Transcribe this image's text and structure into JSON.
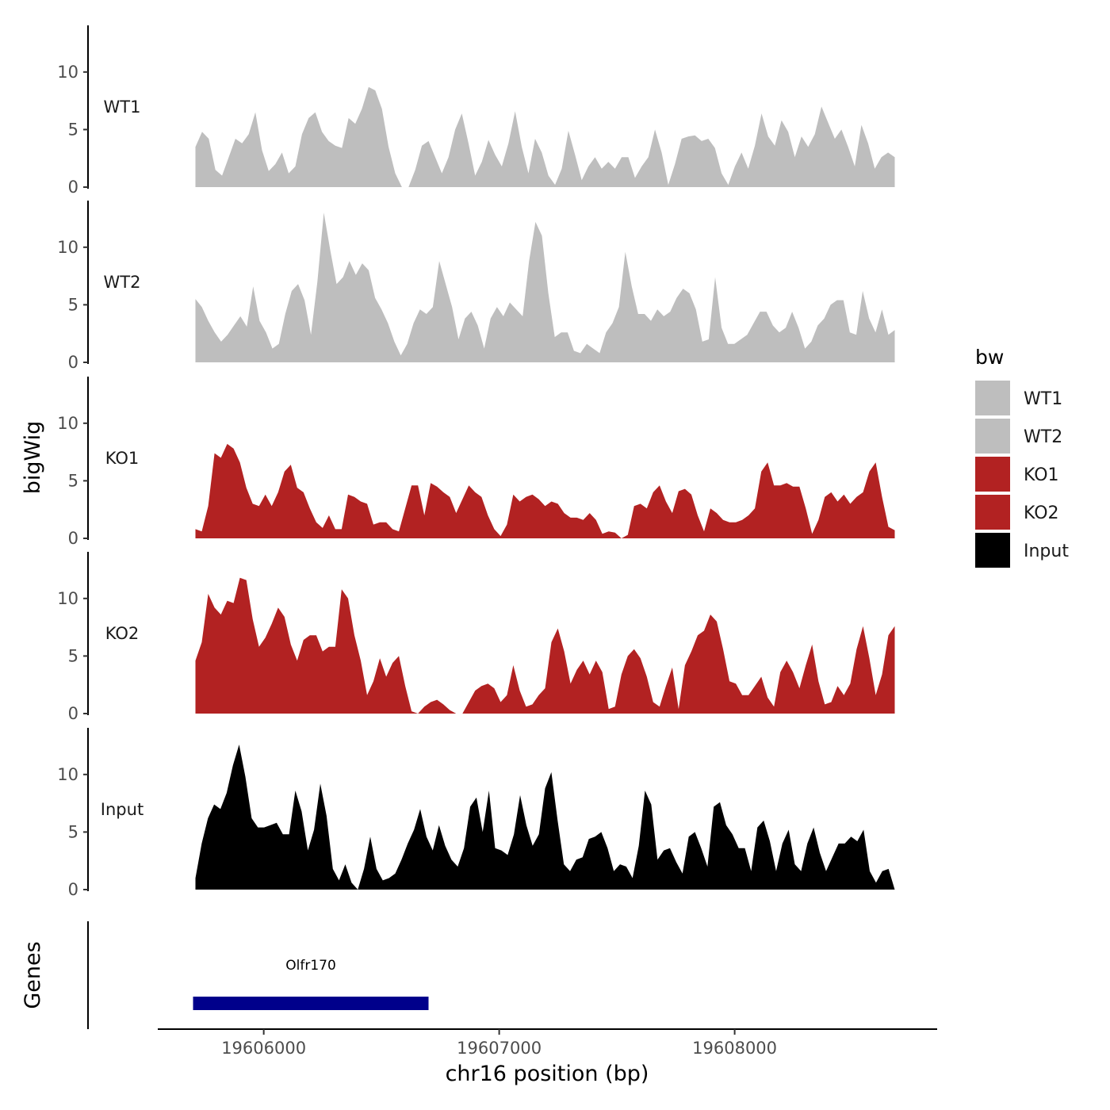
{
  "chart_data": {
    "type": "area",
    "xlabel": "chr16 position (bp)",
    "ylabel": "bigWig",
    "genes_label": "Genes",
    "xlim": [
      19605550,
      19608860
    ],
    "x_ticks": [
      19606000,
      19607000,
      19608000
    ],
    "x_tick_labels": [
      "19606000",
      "19607000",
      "19608000"
    ],
    "ylim": [
      0,
      13.5
    ],
    "y_ticks": [
      0,
      5,
      10
    ],
    "y_tick_labels": [
      "0",
      "5",
      "10"
    ],
    "region": [
      19605710,
      19608680
    ],
    "legend": {
      "title": "bw",
      "entries": [
        {
          "label": "WT1",
          "color": "#bebebe"
        },
        {
          "label": "WT2",
          "color": "#bebebe"
        },
        {
          "label": "KO1",
          "color": "#b22222"
        },
        {
          "label": "KO2",
          "color": "#b22222"
        },
        {
          "label": "Input",
          "color": "#000000"
        }
      ]
    },
    "series": [
      {
        "name": "WT1",
        "color": "#bebebe",
        "values": [
          3.5,
          4.8,
          4.2,
          1.5,
          1.0,
          2.6,
          4.2,
          3.8,
          4.6,
          6.5,
          3.2,
          1.4,
          2.0,
          3.0,
          1.2,
          1.8,
          4.6,
          6.0,
          6.5,
          4.8,
          4.0,
          3.6,
          3.4,
          6.0,
          5.5,
          6.8,
          8.7,
          8.4,
          6.8,
          3.5,
          1.2,
          0.0,
          0.0,
          1.5,
          3.6,
          4.0,
          2.6,
          1.2,
          2.6,
          5.0,
          6.4,
          3.8,
          1.0,
          2.2,
          4.1,
          2.8,
          1.8,
          3.8,
          6.6,
          3.5,
          1.2,
          4.2,
          3.0,
          1.0,
          0.2,
          1.6,
          4.9,
          2.8,
          0.6,
          1.8,
          2.6,
          1.6,
          2.2,
          1.6,
          2.6,
          2.6,
          0.8,
          1.8,
          2.6,
          5.0,
          3.0,
          0.2,
          2.0,
          4.2,
          4.4,
          4.5,
          4.0,
          4.2,
          3.4,
          1.2,
          0.2,
          1.8,
          3.0,
          1.6,
          3.6,
          6.4,
          4.4,
          3.6,
          5.8,
          4.8,
          2.6,
          4.4,
          3.5,
          4.6,
          7.0,
          5.6,
          4.2,
          5.0,
          3.5,
          1.8,
          5.4,
          3.8,
          1.6,
          2.6,
          3.0,
          2.6
        ]
      },
      {
        "name": "WT2",
        "color": "#bebebe",
        "values": [
          5.5,
          4.8,
          3.6,
          2.6,
          1.8,
          2.4,
          3.2,
          4.0,
          3.1,
          6.6,
          3.6,
          2.6,
          1.2,
          1.6,
          4.2,
          6.2,
          6.8,
          5.4,
          2.4,
          7.0,
          13.0,
          9.8,
          6.8,
          7.4,
          8.8,
          7.6,
          8.6,
          8.0,
          5.6,
          4.6,
          3.4,
          1.8,
          0.6,
          1.6,
          3.4,
          4.6,
          4.2,
          4.8,
          8.8,
          6.8,
          4.8,
          2.0,
          3.8,
          4.4,
          3.2,
          1.2,
          3.8,
          4.8,
          4.0,
          5.2,
          4.6,
          4.0,
          8.8,
          12.2,
          11.0,
          6.0,
          2.2,
          2.6,
          2.6,
          1.0,
          0.8,
          1.6,
          1.2,
          0.8,
          2.6,
          3.4,
          4.8,
          9.6,
          6.6,
          4.2,
          4.2,
          3.6,
          4.6,
          4.0,
          4.4,
          5.6,
          6.4,
          6.0,
          4.6,
          1.8,
          2.0,
          7.4,
          3.0,
          1.6,
          1.6,
          2.0,
          2.4,
          3.4,
          4.4,
          4.4,
          3.2,
          2.6,
          3.0,
          4.4,
          3.0,
          1.2,
          1.8,
          3.2,
          3.8,
          5.0,
          5.4,
          5.4,
          2.6,
          2.4,
          6.2,
          3.8,
          2.6,
          4.6,
          2.4,
          2.8
        ]
      },
      {
        "name": "KO1",
        "color": "#b22222",
        "values": [
          0.8,
          0.6,
          2.8,
          7.4,
          7.0,
          8.2,
          7.8,
          6.6,
          4.4,
          3.0,
          2.8,
          3.8,
          2.8,
          4.0,
          5.8,
          6.4,
          4.4,
          4.0,
          2.6,
          1.4,
          0.9,
          2.0,
          0.8,
          0.8,
          3.8,
          3.6,
          3.2,
          3.0,
          1.2,
          1.4,
          1.4,
          0.8,
          0.6,
          2.6,
          4.6,
          4.6,
          2.0,
          4.8,
          4.5,
          4.0,
          3.6,
          2.2,
          3.4,
          4.6,
          4.0,
          3.6,
          2.0,
          0.8,
          0.2,
          1.2,
          3.8,
          3.2,
          3.6,
          3.8,
          3.4,
          2.8,
          3.2,
          3.0,
          2.2,
          1.8,
          1.8,
          1.6,
          2.2,
          1.6,
          0.4,
          0.6,
          0.5,
          0.0,
          0.3,
          2.8,
          3.0,
          2.6,
          4.0,
          4.6,
          3.2,
          2.2,
          4.1,
          4.3,
          3.8,
          2.0,
          0.6,
          2.6,
          2.2,
          1.6,
          1.4,
          1.4,
          1.6,
          2.0,
          2.6,
          5.8,
          6.6,
          4.6,
          4.6,
          4.8,
          4.5,
          4.5,
          2.6,
          0.4,
          1.6,
          3.6,
          4.0,
          3.2,
          3.8,
          3.0,
          3.6,
          4.0,
          5.8,
          6.6,
          3.6,
          1.0,
          0.7
        ]
      },
      {
        "name": "KO2",
        "color": "#b22222",
        "values": [
          4.6,
          6.2,
          10.4,
          9.2,
          8.6,
          9.8,
          9.6,
          11.8,
          11.6,
          8.2,
          5.8,
          6.6,
          7.8,
          9.2,
          8.4,
          6.0,
          4.6,
          6.4,
          6.8,
          6.8,
          5.4,
          5.8,
          5.8,
          10.8,
          10.0,
          6.8,
          4.6,
          1.6,
          2.8,
          4.8,
          3.2,
          4.4,
          5.0,
          2.4,
          0.2,
          0.0,
          0.6,
          1.0,
          1.2,
          0.8,
          0.3,
          0.0,
          0.0,
          1.0,
          2.0,
          2.4,
          2.6,
          2.2,
          1.0,
          1.6,
          4.2,
          2.0,
          0.6,
          0.8,
          1.6,
          2.2,
          6.2,
          7.4,
          5.4,
          2.6,
          3.8,
          4.6,
          3.4,
          4.6,
          3.6,
          0.4,
          0.6,
          3.4,
          5.0,
          5.6,
          4.8,
          3.2,
          1.0,
          0.6,
          2.4,
          4.0,
          0.4,
          4.2,
          5.4,
          6.8,
          7.2,
          8.6,
          8.0,
          5.6,
          2.8,
          2.6,
          1.6,
          1.6,
          2.4,
          3.2,
          1.4,
          0.6,
          3.6,
          4.6,
          3.6,
          2.2,
          4.2,
          6.0,
          2.8,
          0.8,
          1.0,
          2.4,
          1.6,
          2.6,
          5.6,
          7.6,
          4.8,
          1.6,
          3.4,
          6.8,
          7.6
        ]
      },
      {
        "name": "Input",
        "color": "#000000",
        "values": [
          1.0,
          4.0,
          6.2,
          7.4,
          7.0,
          8.4,
          10.8,
          12.6,
          9.8,
          6.2,
          5.4,
          5.4,
          5.6,
          5.8,
          4.8,
          4.8,
          8.6,
          6.8,
          3.4,
          5.2,
          9.2,
          6.4,
          1.8,
          0.8,
          2.2,
          0.6,
          0.0,
          1.8,
          4.6,
          1.8,
          0.8,
          1.0,
          1.4,
          2.6,
          4.0,
          5.2,
          7.0,
          4.6,
          3.4,
          5.6,
          3.8,
          2.6,
          2.0,
          3.6,
          7.2,
          8.0,
          5.0,
          8.6,
          3.6,
          3.4,
          3.0,
          4.8,
          8.2,
          5.6,
          3.8,
          4.8,
          8.8,
          10.2,
          6.0,
          2.2,
          1.6,
          2.6,
          2.8,
          4.4,
          4.6,
          5.0,
          3.6,
          1.6,
          2.2,
          2.0,
          1.0,
          3.8,
          8.6,
          7.4,
          2.6,
          3.4,
          3.6,
          2.4,
          1.4,
          4.6,
          5.0,
          3.6,
          2.0,
          7.2,
          7.6,
          5.6,
          4.8,
          3.6,
          3.6,
          1.6,
          5.4,
          6.0,
          4.2,
          1.6,
          4.0,
          5.2,
          2.2,
          1.6,
          4.0,
          5.4,
          3.2,
          1.6,
          2.8,
          4.0,
          4.0,
          4.6,
          4.2,
          5.2,
          1.6,
          0.6,
          1.6,
          1.8,
          0.0
        ]
      }
    ],
    "gene": {
      "name": "Olfr170",
      "start": 19605700,
      "end": 19606700,
      "color": "#00008b"
    }
  }
}
